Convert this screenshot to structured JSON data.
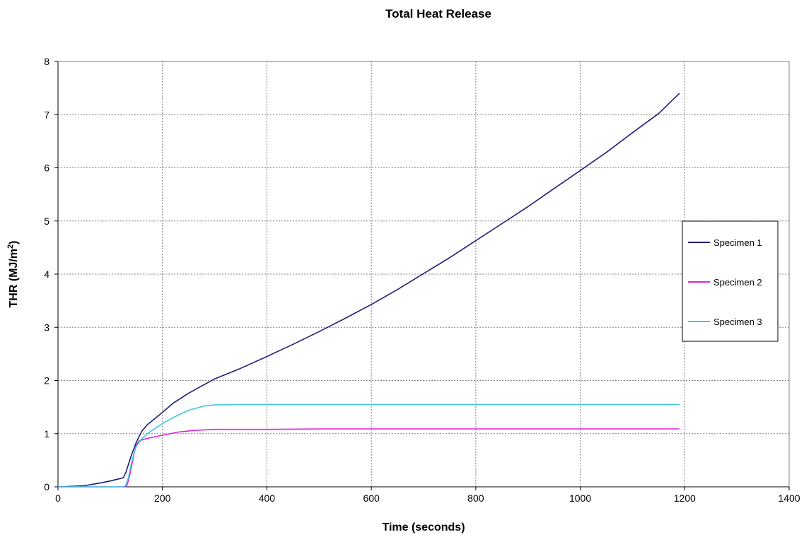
{
  "chart_data": {
    "type": "line",
    "title": "Total Heat Release",
    "xlabel": "Time (seconds)",
    "ylabel_main": "THR (MJ/m",
    "ylabel_sup": "2",
    "ylabel_close": ")",
    "xlim": [
      0,
      1400
    ],
    "ylim": [
      0,
      8
    ],
    "xticks": [
      0,
      200,
      400,
      600,
      800,
      1000,
      1200,
      1400
    ],
    "yticks": [
      0,
      1,
      2,
      3,
      4,
      5,
      6,
      7,
      8
    ],
    "grid": true,
    "legend_position": "right",
    "series": [
      {
        "name": "Specimen 1",
        "color": "#1f1f7a",
        "x": [
          0,
          50,
          80,
          100,
          125,
          130,
          140,
          150,
          160,
          170,
          180,
          200,
          220,
          250,
          300,
          350,
          400,
          450,
          500,
          550,
          600,
          650,
          700,
          750,
          800,
          850,
          900,
          950,
          1000,
          1050,
          1100,
          1150,
          1190
        ],
        "y": [
          0,
          0.02,
          0.07,
          0.11,
          0.17,
          0.27,
          0.58,
          0.84,
          1.04,
          1.16,
          1.24,
          1.4,
          1.57,
          1.76,
          2.03,
          2.23,
          2.45,
          2.68,
          2.92,
          3.17,
          3.43,
          3.71,
          4.01,
          4.31,
          4.63,
          4.95,
          5.27,
          5.61,
          5.95,
          6.29,
          6.66,
          7.02,
          7.4
        ]
      },
      {
        "name": "Specimen 2",
        "color": "#e020e0",
        "x": [
          0,
          100,
          128,
          132,
          135,
          140,
          145,
          150,
          155,
          160,
          170,
          180,
          200,
          230,
          260,
          300,
          400,
          500,
          600,
          800,
          1000,
          1190
        ],
        "y": [
          0,
          0,
          0,
          0.03,
          0.12,
          0.34,
          0.6,
          0.79,
          0.86,
          0.88,
          0.91,
          0.93,
          0.97,
          1.03,
          1.06,
          1.08,
          1.08,
          1.09,
          1.09,
          1.09,
          1.09,
          1.09
        ]
      },
      {
        "name": "Specimen 3",
        "color": "#40c8e0",
        "x": [
          0,
          100,
          125,
          130,
          135,
          140,
          145,
          150,
          160,
          170,
          180,
          200,
          220,
          250,
          280,
          300,
          350,
          400,
          500,
          600,
          800,
          1000,
          1190
        ],
        "y": [
          0,
          0,
          0,
          0.03,
          0.18,
          0.42,
          0.62,
          0.76,
          0.9,
          0.99,
          1.06,
          1.19,
          1.3,
          1.44,
          1.52,
          1.54,
          1.55,
          1.55,
          1.55,
          1.55,
          1.55,
          1.55,
          1.55
        ]
      }
    ]
  }
}
